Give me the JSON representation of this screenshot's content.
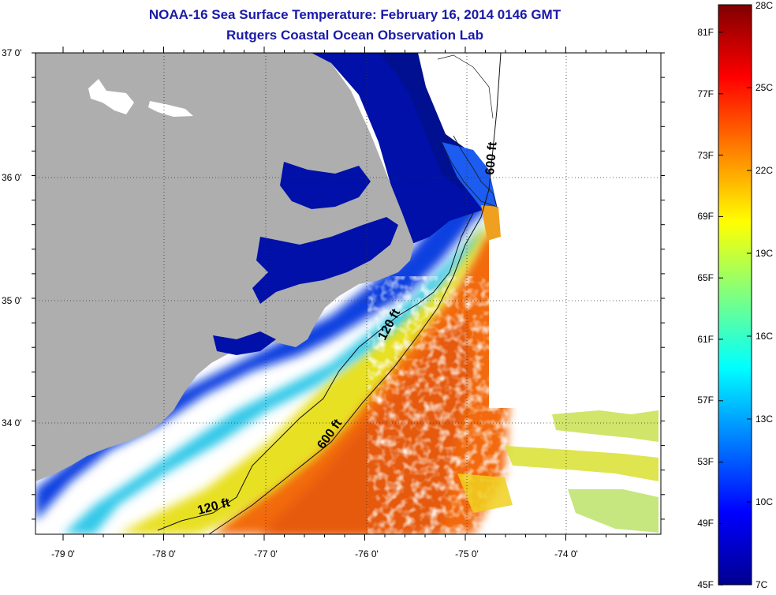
{
  "title": "NOAA-16 Sea Surface Temperature:  February 16, 2014 0146 GMT",
  "subtitle": "Rutgers Coastal Ocean Observation Lab",
  "map": {
    "lon_labels": [
      "-79 0'",
      "-78 0'",
      "-77 0'",
      "-76 0'",
      "-75 0'",
      "-74 0'"
    ],
    "lat_labels": [
      "37 0'",
      "36 0'",
      "35 0'",
      "34 0'"
    ],
    "contour_labels": {
      "c120_lower": "120 ft",
      "c120_upper": "120 ft",
      "c600_lower": "600 ft",
      "c600_upper": "600 ft"
    }
  },
  "colorbar": {
    "fahrenheit_labels": [
      "81F",
      "77F",
      "73F",
      "69F",
      "65F",
      "61F",
      "57F",
      "53F",
      "49F",
      "45F"
    ],
    "celsius_labels": [
      "28C",
      "25C",
      "22C",
      "19C",
      "16C",
      "13C",
      "10C",
      "7C"
    ]
  },
  "colors": {
    "land": "#aeaeae",
    "cloud": "#ffffff",
    "title": "#1a1aa8",
    "cold": "#00008f",
    "warm": "#800000"
  }
}
